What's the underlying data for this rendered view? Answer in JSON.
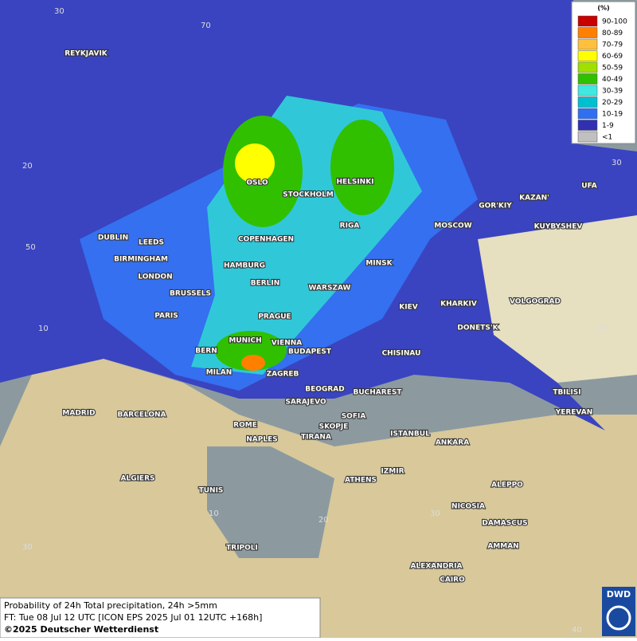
{
  "map": {
    "cities": [
      "REYKJAVIK",
      "OSLO",
      "STOCKHOLM",
      "HELSINKI",
      "DUBLIN",
      "LEEDS",
      "BIRMINGHAM",
      "LONDON",
      "COPENHAGEN",
      "HAMBURG",
      "RIGA",
      "MOSCOW",
      "MINSK",
      "BERLIN",
      "WARSZAW",
      "BRUSSELS",
      "PARIS",
      "PRAGUE",
      "KIEV",
      "KHARKIV",
      "VOLGOGRAD",
      "DONETS'K",
      "MUNICH",
      "VIENNA",
      "BERN",
      "BUDAPEST",
      "CHISINAU",
      "MILAN",
      "ZAGREB",
      "BEOGRAD",
      "BUCHAREST",
      "SARAJEVO",
      "MADRID",
      "BARCELONA",
      "SOFIA",
      "SKOPJE",
      "ROME",
      "NAPLES",
      "TIRANA",
      "ISTANBUL",
      "ANKARA",
      "TBILISI",
      "YEREVAN",
      "ALGIERS",
      "TUNIS",
      "ATHENS",
      "IZMIR",
      "ALEPPO",
      "NICOSIA",
      "DAMASCUS",
      "AMMAN",
      "TRIPOLI",
      "ALEXANDRIA",
      "CAIRO",
      "GOR'KIY",
      "KAZAN'",
      "UFA",
      "KUYBYSHEV"
    ],
    "graticule_labels": [
      30,
      70,
      20,
      50,
      10,
      10,
      20,
      30,
      40,
      50,
      30,
      30
    ]
  },
  "legend": {
    "title": "(%)",
    "items": [
      {
        "label": "90-100",
        "color": "#c80000"
      },
      {
        "label": "80-89",
        "color": "#ff8000"
      },
      {
        "label": "70-79",
        "color": "#ffc040"
      },
      {
        "label": "60-69",
        "color": "#ffff00"
      },
      {
        "label": "50-59",
        "color": "#a0e000"
      },
      {
        "label": "40-49",
        "color": "#30c000"
      },
      {
        "label": "30-39",
        "color": "#40e8e0"
      },
      {
        "label": "20-29",
        "color": "#00c0d0"
      },
      {
        "label": "10-19",
        "color": "#3070f0"
      },
      {
        "label": "1-9",
        "color": "#3030b0"
      },
      {
        "label": "<1",
        "color": "#c0c0c0"
      }
    ]
  },
  "caption": {
    "line1": "Probability of 24h Total precipitation, 24h >5mm",
    "line2": "FT: Tue 08 Jul 12 UTC [ICON EPS 2025 Jul 01 12UTC +168h]",
    "line3": "©2025 Deutscher Wetterdienst"
  },
  "logo": "DWD"
}
